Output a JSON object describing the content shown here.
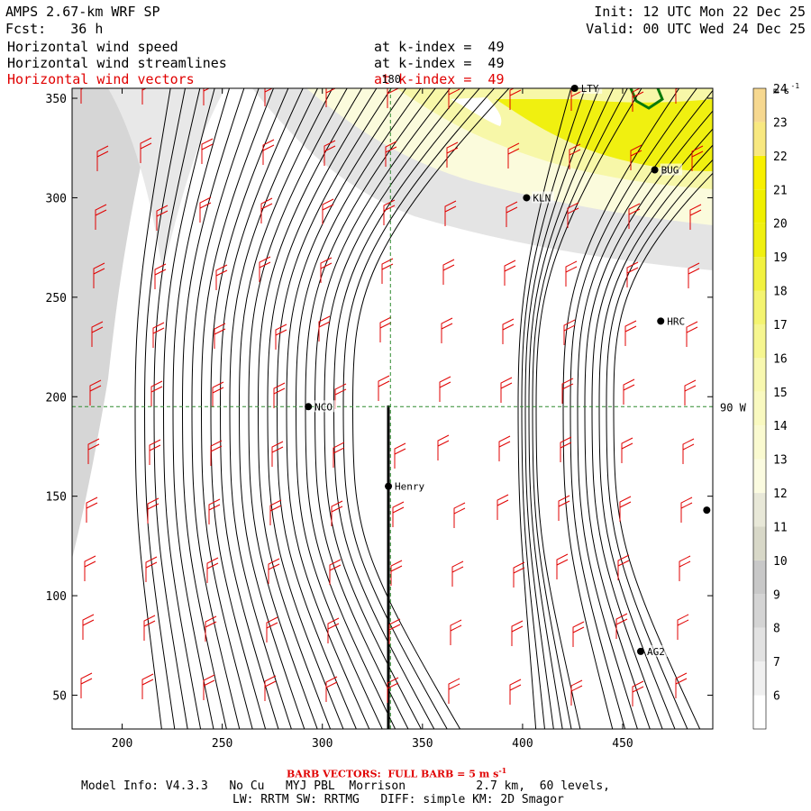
{
  "header": {
    "model_title": "AMPS 2.67-km WRF SP",
    "init_line": "Init: 12 UTC Mon 22 Dec 25",
    "fcst_line": "Fcst:   36 h",
    "valid_line": "Valid: 00 UTC Wed 24 Dec 25",
    "fields": [
      {
        "name": "Horizontal wind speed",
        "level": "at k-index =  49",
        "color": "#000000"
      },
      {
        "name": "Horizontal wind streamlines",
        "level": "at k-index =  49",
        "color": "#000000"
      },
      {
        "name": "Horizontal wind vectors",
        "level": "at k-index =  49",
        "color": "#e00000"
      }
    ]
  },
  "footer": {
    "barb_note": "BARB VECTORS:  FULL BARB = 5 m s",
    "barb_note_exp": "-1",
    "model_info": "Model Info: V4.3.3   No Cu   MYJ PBL  Morrison          2.7 km,  60 levels,",
    "physics_info": "LW: RRTM SW: RRTMG   DIFF: simple KM: 2D Smagor"
  },
  "chart_data": {
    "type": "heatmap",
    "description_fields": [
      "wind speed shading",
      "streamlines",
      "wind barbs"
    ],
    "x_ticks": [
      200,
      250,
      300,
      350,
      400,
      450
    ],
    "y_ticks": [
      50,
      100,
      150,
      200,
      250,
      300,
      350
    ],
    "xlim": [
      175,
      495
    ],
    "ylim": [
      33,
      355
    ],
    "grid": false,
    "reference_lines": [
      {
        "label": "180",
        "orientation": "vertical",
        "x": 334
      },
      {
        "label": "90 W",
        "orientation": "horizontal",
        "y": 195
      }
    ],
    "stations": [
      {
        "label": "LTY",
        "x": 426,
        "y": 355
      },
      {
        "label": "BUG",
        "x": 466,
        "y": 314
      },
      {
        "label": "KLN",
        "x": 402,
        "y": 300
      },
      {
        "label": "HRC",
        "x": 469,
        "y": 238
      },
      {
        "label": "NCO",
        "x": 293,
        "y": 195
      },
      {
        "label": "Henry",
        "x": 333,
        "y": 155
      },
      {
        "label": "",
        "x": 492,
        "y": 143
      },
      {
        "label": "AG2",
        "x": 459,
        "y": 72
      }
    ],
    "colorbar": {
      "unit": "m s",
      "unit_exp": "-1",
      "levels": [
        6,
        7,
        8,
        9,
        10,
        11,
        12,
        13,
        14,
        15,
        16,
        17,
        18,
        19,
        20,
        21,
        22,
        23,
        24
      ],
      "colors": [
        "#ffffff",
        "#f0f0f0",
        "#e2e2e2",
        "#d4d4d4",
        "#c8c8c8",
        "#d8d8c8",
        "#e8e8d8",
        "#fbfbe0",
        "#fafad0",
        "#f9f9c0",
        "#f8f8b0",
        "#f6f690",
        "#f4f470",
        "#f2f240",
        "#f0f010",
        "#f0f000",
        "#f8f000",
        "#f8e880",
        "#f6d890"
      ]
    }
  }
}
